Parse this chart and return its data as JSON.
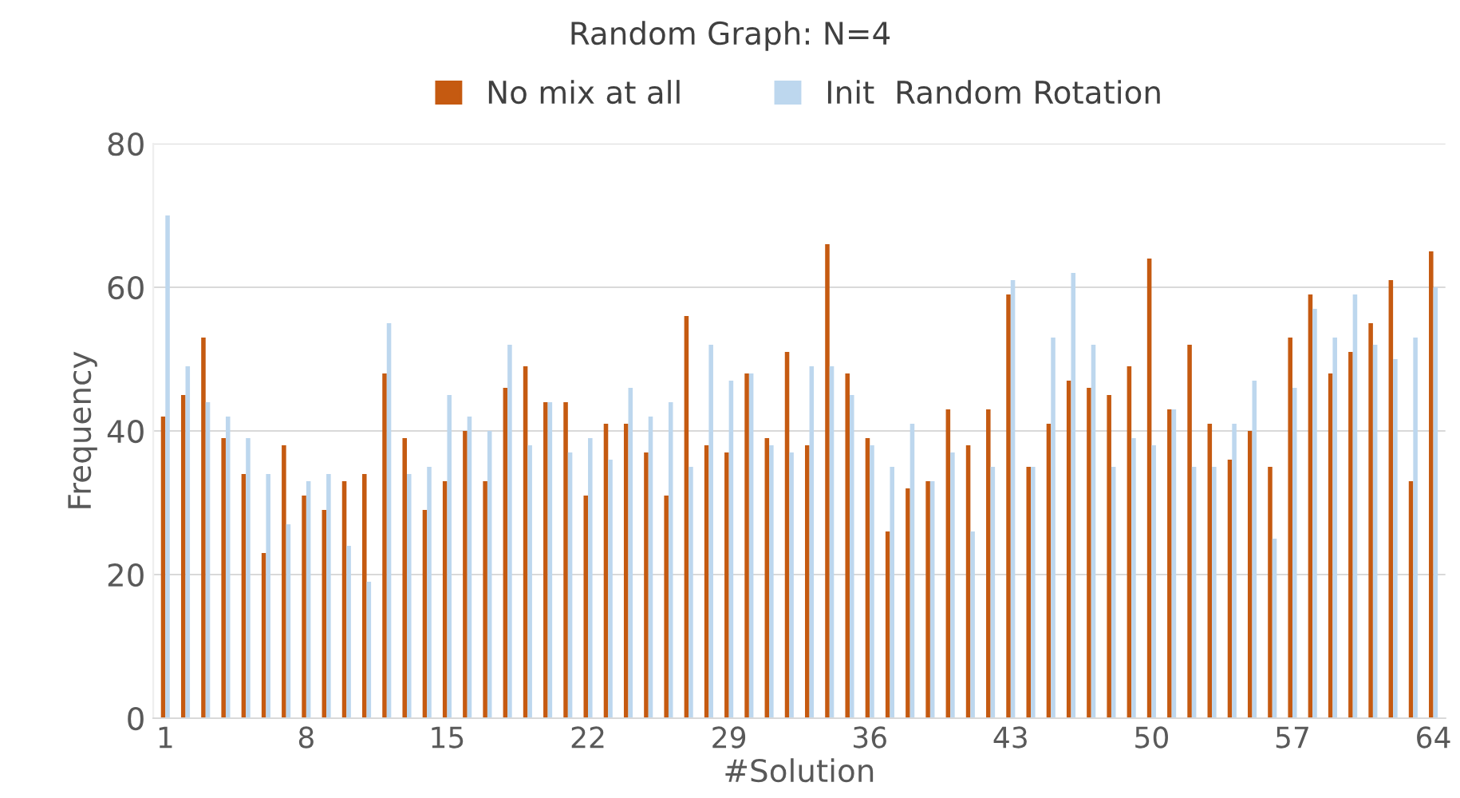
{
  "chart_data": {
    "type": "bar",
    "title": "Random Graph: N=4",
    "xlabel": "#Solution",
    "ylabel": "Frequency",
    "categories": [
      "1",
      null,
      null,
      null,
      null,
      null,
      null,
      "8",
      null,
      null,
      null,
      null,
      null,
      null,
      "15",
      null,
      null,
      null,
      null,
      null,
      null,
      "22",
      null,
      null,
      null,
      null,
      null,
      null,
      "29",
      null,
      null,
      null,
      null,
      null,
      null,
      "36",
      null,
      null,
      null,
      null,
      null,
      null,
      "43",
      null,
      null,
      null,
      null,
      null,
      null,
      "50",
      null,
      null,
      null,
      null,
      null,
      null,
      "57",
      null,
      null,
      null,
      null,
      null,
      null,
      "64"
    ],
    "series": [
      {
        "name": "No mix at all",
        "color": "#c55a11",
        "values": [
          42,
          45,
          53,
          39,
          34,
          23,
          38,
          31,
          29,
          33,
          34,
          48,
          39,
          29,
          33,
          40,
          33,
          46,
          49,
          44,
          44,
          31,
          41,
          41,
          37,
          31,
          56,
          38,
          37,
          48,
          39,
          51,
          38,
          66,
          48,
          39,
          26,
          32,
          33,
          43,
          38,
          43,
          59,
          35,
          41,
          47,
          46,
          45,
          49,
          64,
          43,
          52,
          41,
          36,
          40,
          35,
          53,
          59,
          48,
          51,
          55,
          61,
          33,
          65
        ]
      },
      {
        "name": "Init  Random Rotation",
        "color": "#bdd7ee",
        "values": [
          70,
          49,
          44,
          42,
          39,
          34,
          27,
          33,
          34,
          24,
          19,
          55,
          34,
          35,
          45,
          42,
          40,
          52,
          38,
          44,
          37,
          39,
          36,
          46,
          42,
          44,
          35,
          52,
          47,
          48,
          38,
          37,
          49,
          49,
          45,
          38,
          35,
          41,
          33,
          37,
          26,
          35,
          61,
          35,
          53,
          62,
          52,
          35,
          39,
          38,
          43,
          35,
          35,
          41,
          47,
          25,
          46,
          57,
          53,
          59,
          52,
          50,
          53,
          60
        ]
      }
    ],
    "ylim": [
      0,
      80
    ],
    "yticks": [
      0,
      20,
      40,
      60,
      80
    ],
    "grid": "y",
    "legend": "top"
  }
}
